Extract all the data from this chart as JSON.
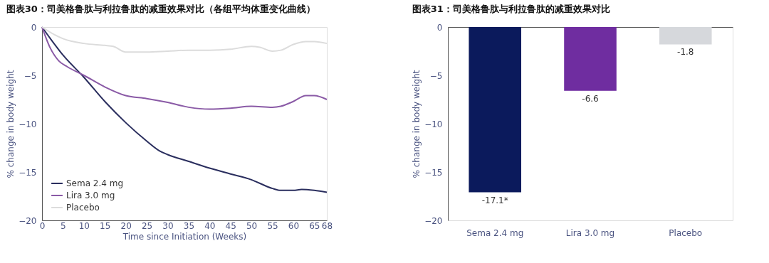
{
  "chart_data": [
    {
      "type": "line",
      "title": "图表30：司美格鲁肽与利拉鲁肽的减重效果对比（各组平均体重变化曲线）",
      "xlabel": "Time since Initiation (Weeks)",
      "ylabel": "% change in body weight",
      "xlim": [
        0,
        68
      ],
      "xticks": [
        0,
        5,
        10,
        15,
        20,
        25,
        30,
        35,
        40,
        45,
        50,
        55,
        60,
        65,
        68
      ],
      "ylim": [
        -20,
        0
      ],
      "yticks": [
        -20,
        -15,
        -10,
        -5,
        0
      ],
      "grid": false,
      "legend": "bottom left",
      "marker": "none",
      "line_style": "solid",
      "series": [
        {
          "name": "Sema 2.4 mg",
          "color": "#2a2e5e",
          "x": [
            0,
            2,
            5,
            10,
            15,
            20,
            25,
            28,
            30,
            35,
            40,
            45,
            50,
            55,
            57,
            60,
            62,
            65,
            68
          ],
          "values": [
            0,
            -1.2,
            -2.9,
            -5.2,
            -7.7,
            -9.9,
            -11.8,
            -12.8,
            -13.2,
            -13.9,
            -14.6,
            -15.2,
            -15.8,
            -16.7,
            -16.9,
            -16.9,
            -16.8,
            -16.9,
            -17.1
          ]
        },
        {
          "name": "Lira 3.0 mg",
          "color": "#8a5aa6",
          "x": [
            0,
            2,
            4,
            6,
            10,
            15,
            20,
            25,
            30,
            35,
            40,
            45,
            50,
            55,
            57,
            60,
            63,
            65,
            68
          ],
          "values": [
            0,
            -2.2,
            -3.5,
            -4.1,
            -5.0,
            -6.2,
            -7.1,
            -7.4,
            -7.8,
            -8.3,
            -8.5,
            -8.4,
            -8.2,
            -8.3,
            -8.2,
            -7.7,
            -7.1,
            -7.1,
            -7.5
          ]
        },
        {
          "name": "Placebo",
          "color": "#dcdcdc",
          "x": [
            0,
            3,
            5,
            10,
            15,
            17,
            20,
            25,
            30,
            35,
            40,
            45,
            50,
            52,
            55,
            57,
            60,
            63,
            65,
            68
          ],
          "values": [
            0,
            -0.8,
            -1.2,
            -1.7,
            -1.9,
            -2.0,
            -2.6,
            -2.6,
            -2.5,
            -2.4,
            -2.4,
            -2.3,
            -2.0,
            -2.1,
            -2.5,
            -2.4,
            -1.8,
            -1.5,
            -1.5,
            -1.7
          ]
        }
      ]
    },
    {
      "type": "bar",
      "title": "图表31：司美格鲁肽与利拉鲁肽的减重效果对比",
      "ylabel": "% change in body weight",
      "categories": [
        "Sema 2.4 mg",
        "Lira 3.0 mg",
        "Placebo"
      ],
      "values": [
        -17.1,
        -6.6,
        -1.8
      ],
      "colors": [
        "#0b1a5c",
        "#6f2da0",
        "#d6d8dc"
      ],
      "value_labels": [
        "-17.1*",
        "-6.6",
        "-1.8"
      ],
      "ylim": [
        -20,
        0
      ],
      "yticks": [
        -20,
        -15,
        -10,
        -5,
        0
      ],
      "grid": false
    }
  ]
}
